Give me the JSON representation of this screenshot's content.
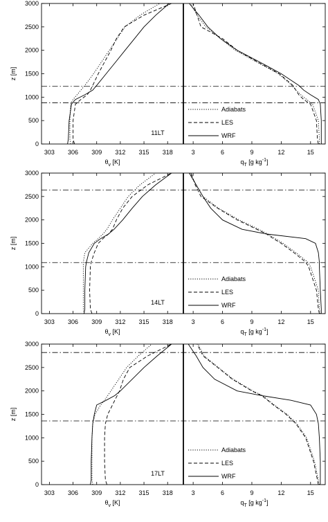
{
  "chart_data": [
    {
      "type": "line",
      "label": "11LT",
      "ylabel": "z [m]",
      "ylim": [
        0,
        3000
      ],
      "yticks": [
        0,
        500,
        1000,
        1500,
        2000,
        2500,
        3000
      ],
      "y": [
        0,
        100,
        500,
        850,
        950,
        1050,
        1150,
        1250,
        1500,
        1750,
        2000,
        2250,
        2500,
        2750,
        3000
      ],
      "hlines": [
        1230,
        880
      ],
      "panels": [
        {
          "xlabel": {
            "main": "θ",
            "sub": "v",
            "rest": " [K]"
          },
          "xlim": [
            302,
            320
          ],
          "xticks": [
            303,
            306,
            309,
            312,
            315,
            318
          ],
          "series": [
            {
              "style": "dotted",
              "values": [
                305.7,
                305.6,
                305.6,
                305.7,
                306.0,
                306.5,
                307.0,
                307.5,
                308.6,
                309.6,
                310.6,
                311.6,
                312.6,
                314.5,
                317.0
              ]
            },
            {
              "style": "dashed",
              "values": [
                306.2,
                306.0,
                306.0,
                306.3,
                307.0,
                307.8,
                308.2,
                308.5,
                309.2,
                310.0,
                310.8,
                311.5,
                312.5,
                315.0,
                318.5
              ]
            },
            {
              "style": "solid",
              "values": [
                305.3,
                305.4,
                305.5,
                305.8,
                306.3,
                307.5,
                308.5,
                309.0,
                310.2,
                311.4,
                312.6,
                313.8,
                315.0,
                316.5,
                318.2
              ]
            }
          ]
        },
        {
          "xlabel": {
            "main": "q",
            "sub": "T",
            "rest": " [g kg",
            "sup": "-1",
            "end": "]"
          },
          "xlim": [
            2,
            16.5
          ],
          "xticks": [
            3,
            6,
            9,
            12,
            15
          ],
          "series": [
            {
              "name": "Adiabats",
              "style": "dotted",
              "values": [
                15.9,
                15.9,
                15.8,
                15.2,
                14.6,
                14.0,
                13.5,
                13.1,
                11.7,
                9.5,
                7.3,
                5.8,
                4.3,
                3.4,
                2.7
              ]
            },
            {
              "name": "LES",
              "style": "dashed",
              "values": [
                15.8,
                15.7,
                15.6,
                15.0,
                14.3,
                13.8,
                13.5,
                13.2,
                11.8,
                9.6,
                7.5,
                6.0,
                3.8,
                3.4,
                3.0
              ]
            },
            {
              "name": "WRF",
              "style": "solid",
              "values": [
                16.1,
                16.1,
                16.1,
                16.0,
                15.8,
                15.0,
                14.3,
                13.8,
                12.0,
                9.8,
                7.5,
                5.8,
                4.5,
                3.6,
                2.6
              ]
            }
          ]
        }
      ]
    },
    {
      "type": "line",
      "label": "14LT",
      "ylabel": "z [m]",
      "ylim": [
        0,
        3000
      ],
      "yticks": [
        0,
        500,
        1000,
        1500,
        2000,
        2500,
        3000
      ],
      "y": [
        0,
        100,
        500,
        1000,
        1100,
        1300,
        1500,
        1600,
        1700,
        1800,
        2000,
        2250,
        2500,
        2750,
        3000
      ],
      "hlines": [
        2640,
        1090
      ],
      "panels": [
        {
          "xlabel": {
            "main": "θ",
            "sub": "v",
            "rest": " [K]"
          },
          "xlim": [
            302,
            320
          ],
          "xticks": [
            303,
            306,
            309,
            312,
            315,
            318
          ],
          "series": [
            {
              "style": "dotted",
              "values": [
                307.4,
                307.3,
                307.3,
                307.3,
                307.3,
                307.5,
                308.5,
                309.2,
                309.8,
                310.3,
                311.0,
                312.0,
                313.0,
                314.5,
                316.5
              ]
            },
            {
              "style": "dashed",
              "values": [
                308.4,
                308.2,
                308.1,
                308.2,
                308.3,
                308.7,
                309.2,
                309.8,
                310.5,
                311.0,
                311.5,
                312.3,
                313.5,
                315.5,
                318.5
              ]
            },
            {
              "style": "solid",
              "values": [
                307.4,
                307.5,
                307.5,
                307.6,
                307.7,
                308.0,
                308.7,
                309.5,
                310.5,
                311.2,
                312.3,
                313.5,
                314.8,
                316.5,
                318.5
              ]
            }
          ]
        },
        {
          "xlabel": {
            "main": "q",
            "sub": "T",
            "rest": " [g kg",
            "sup": "-1",
            "end": "]"
          },
          "xlim": [
            2,
            16.5
          ],
          "xticks": [
            3,
            6,
            9,
            12,
            15
          ],
          "series": [
            {
              "name": "Adiabats",
              "style": "dotted",
              "values": [
                16.0,
                15.9,
                15.8,
                15.0,
                14.7,
                13.5,
                12.2,
                11.4,
                10.6,
                9.7,
                7.7,
                5.6,
                4.0,
                3.3,
                2.7
              ]
            },
            {
              "name": "LES",
              "style": "dashed",
              "values": [
                15.9,
                15.8,
                15.6,
                14.8,
                14.5,
                13.3,
                12.0,
                11.2,
                10.5,
                9.5,
                7.5,
                5.5,
                3.8,
                3.2,
                2.8
              ]
            },
            {
              "name": "WRF",
              "style": "solid",
              "values": [
                16.1,
                16.1,
                16.0,
                15.9,
                15.9,
                15.8,
                15.5,
                14.5,
                10.5,
                8.0,
                6.0,
                4.8,
                4.0,
                3.3,
                2.6
              ]
            }
          ]
        }
      ]
    },
    {
      "type": "line",
      "label": "17LT",
      "ylabel": "z [m]",
      "ylim": [
        0,
        3000
      ],
      "yticks": [
        0,
        500,
        1000,
        1500,
        2000,
        2500,
        3000
      ],
      "y": [
        0,
        100,
        500,
        1000,
        1300,
        1500,
        1700,
        1800,
        1900,
        2000,
        2250,
        2500,
        2750,
        3000
      ],
      "hlines": [
        2820,
        1360
      ],
      "panels": [
        {
          "xlabel": {
            "main": "θ",
            "sub": "v",
            "rest": " [K]"
          },
          "xlim": [
            302,
            320
          ],
          "xticks": [
            303,
            306,
            309,
            312,
            315,
            318
          ],
          "series": [
            {
              "style": "dotted",
              "values": [
                308.5,
                308.4,
                308.4,
                308.4,
                308.5,
                308.8,
                309.5,
                310.0,
                310.4,
                310.8,
                311.8,
                312.8,
                314.3,
                316.0
              ]
            },
            {
              "style": "dashed",
              "values": [
                310.3,
                310.1,
                310.0,
                310.0,
                310.1,
                310.4,
                311.0,
                311.3,
                311.6,
                311.9,
                312.4,
                313.2,
                315.5,
                318.5
              ]
            },
            {
              "style": "solid",
              "values": [
                308.2,
                308.3,
                308.3,
                308.4,
                308.5,
                308.7,
                309.0,
                310.2,
                311.3,
                312.0,
                313.5,
                315.0,
                316.7,
                318.5
              ]
            }
          ]
        },
        {
          "xlabel": {
            "main": "q",
            "sub": "T",
            "rest": " [g kg",
            "sup": "-1",
            "end": "]"
          },
          "xlim": [
            2,
            16.5
          ],
          "xticks": [
            3,
            6,
            9,
            12,
            15
          ],
          "series": [
            {
              "name": "Adiabats",
              "style": "dotted",
              "values": [
                15.9,
                15.8,
                15.4,
                14.6,
                13.6,
                12.6,
                11.3,
                10.7,
                10.1,
                9.1,
                7.1,
                5.6,
                4.1,
                3.5
              ]
            },
            {
              "name": "LES",
              "style": "dashed",
              "values": [
                15.8,
                15.7,
                15.3,
                14.5,
                13.5,
                12.5,
                11.2,
                10.6,
                10.0,
                9.0,
                7.0,
                5.5,
                4.0,
                3.4
              ]
            },
            {
              "name": "WRF",
              "style": "solid",
              "values": [
                16.0,
                16.0,
                16.0,
                15.9,
                15.8,
                15.6,
                15.0,
                13.0,
                10.0,
                7.5,
                5.2,
                4.0,
                3.3,
                2.5
              ]
            }
          ]
        }
      ]
    }
  ]
}
